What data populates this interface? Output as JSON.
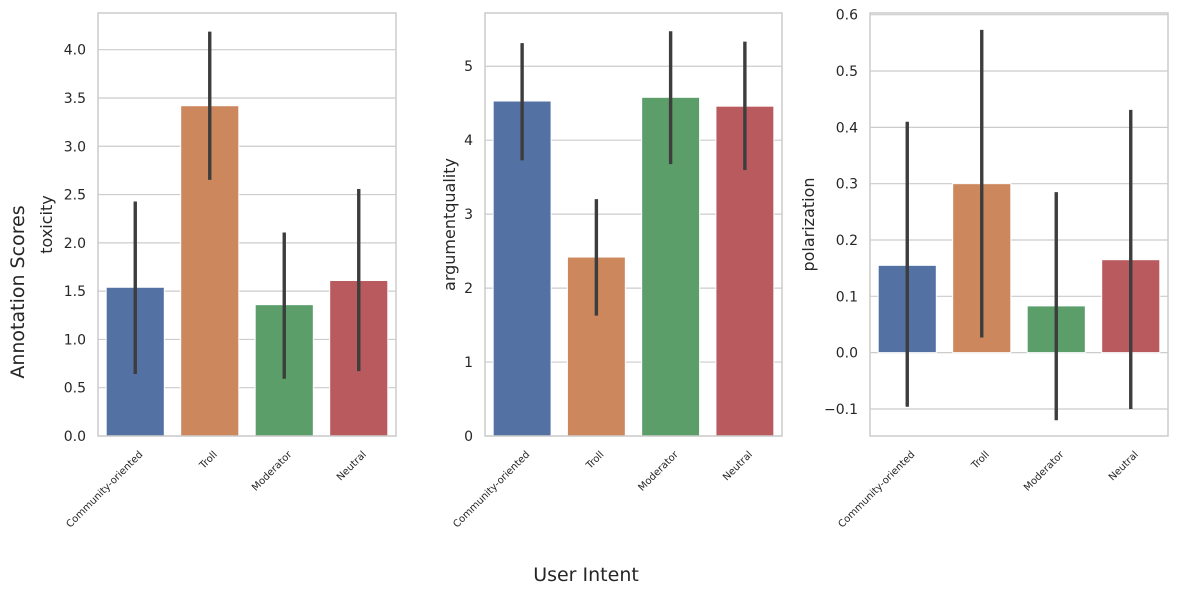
{
  "figure": {
    "supxlabel": "User Intent",
    "supylabel": "Annotation Scores"
  },
  "colors": [
    "#5471a4",
    "#cd875d",
    "#5b9e6a",
    "#b85a5e"
  ],
  "chart_data": [
    {
      "type": "bar",
      "categories": [
        "Community-oriented",
        "Troll",
        "Moderator",
        "Neutral"
      ],
      "values": [
        1.54,
        3.42,
        1.36,
        1.61
      ],
      "error_low": [
        0.66,
        2.67,
        0.61,
        0.69
      ],
      "error_high": [
        2.41,
        4.17,
        2.09,
        2.54
      ],
      "ylabel": "toxicity",
      "ylim": [
        0,
        4.38
      ],
      "yticks": [
        "0.0",
        "0.5",
        "1.0",
        "1.5",
        "2.0",
        "2.5",
        "3.0",
        "3.5",
        "4.0"
      ],
      "grid": true
    },
    {
      "type": "bar",
      "categories": [
        "Community-oriented",
        "Troll",
        "Moderator",
        "Neutral"
      ],
      "values": [
        4.53,
        2.42,
        4.58,
        4.46
      ],
      "error_low": [
        3.75,
        1.65,
        3.7,
        3.62
      ],
      "error_high": [
        5.29,
        3.18,
        5.45,
        5.31
      ],
      "ylabel": "argumentquality",
      "ylim": [
        0,
        5.72
      ],
      "yticks": [
        "0",
        "1",
        "2",
        "3",
        "4",
        "5"
      ],
      "grid": true
    },
    {
      "type": "bar",
      "categories": [
        "Community-oriented",
        "Troll",
        "Moderator",
        "Neutral"
      ],
      "values": [
        0.155,
        0.3,
        0.083,
        0.165
      ],
      "error_low": [
        -0.093,
        0.03,
        -0.117,
        -0.097
      ],
      "error_high": [
        0.407,
        0.57,
        0.282,
        0.428
      ],
      "ylabel": "polarization",
      "ylim": [
        -0.148,
        0.603
      ],
      "yticks": [
        "−0.1",
        "0.0",
        "0.1",
        "0.2",
        "0.3",
        "0.4",
        "0.5",
        "0.6"
      ],
      "grid": true
    }
  ]
}
